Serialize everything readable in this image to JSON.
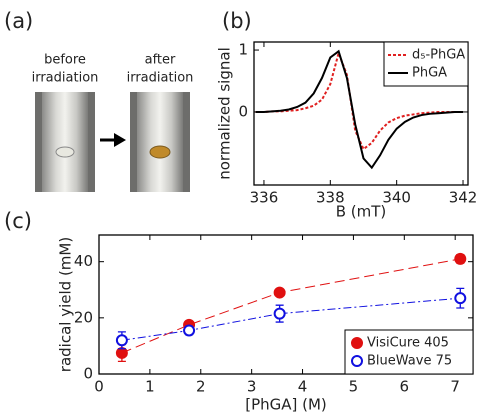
{
  "panel_a": {
    "label": "(a)",
    "before": [
      "before",
      "irradiation"
    ],
    "after": [
      "after",
      "irradiation"
    ]
  },
  "chart_data": [
    {
      "type": "line",
      "label": "(b)",
      "xlabel": "B (mT)",
      "ylabel": "normalized signal",
      "xlim": [
        335.7,
        342.15
      ],
      "ylim": [
        -1.18,
        1.13
      ],
      "xticks": [
        336,
        338,
        340,
        342
      ],
      "yticks": [
        0,
        1
      ],
      "legend": "upper right",
      "series": [
        {
          "name": "d₅-PhGA",
          "color": "#e02020",
          "style": "dotted",
          "x": [
            335.75,
            336,
            336.25,
            336.5,
            336.75,
            337,
            337.25,
            337.5,
            337.75,
            338,
            338.25,
            338.5,
            338.75,
            339,
            339.25,
            339.5,
            339.75,
            340,
            340.25,
            340.5,
            340.75,
            341,
            341.25,
            341.5,
            341.75,
            342
          ],
          "values": [
            0,
            0,
            0.01,
            0.01,
            0.02,
            0.03,
            0.06,
            0.1,
            0.2,
            0.45,
            0.95,
            0.6,
            -0.3,
            -0.6,
            -0.5,
            -0.3,
            -0.17,
            -0.1,
            -0.06,
            -0.04,
            -0.02,
            -0.01,
            0,
            0,
            0,
            0
          ]
        },
        {
          "name": "PhGA",
          "color": "#000000",
          "style": "solid",
          "x": [
            335.75,
            336,
            336.25,
            336.5,
            336.75,
            337,
            337.25,
            337.5,
            337.75,
            338,
            338.25,
            338.5,
            338.75,
            339,
            339.25,
            339.5,
            339.75,
            340,
            340.25,
            340.5,
            340.75,
            341,
            341.25,
            341.5,
            341.75,
            342
          ],
          "values": [
            0,
            0,
            0.01,
            0.02,
            0.04,
            0.08,
            0.15,
            0.3,
            0.55,
            0.88,
            0.98,
            0.55,
            -0.2,
            -0.75,
            -0.9,
            -0.7,
            -0.45,
            -0.27,
            -0.16,
            -0.09,
            -0.05,
            -0.03,
            -0.02,
            -0.01,
            0,
            0
          ]
        }
      ]
    },
    {
      "type": "scatter",
      "label": "(c)",
      "xlabel": "[PhGA] (M)",
      "ylabel": "radical yield (mM)",
      "xlim": [
        0,
        7.35
      ],
      "ylim": [
        0,
        49.5
      ],
      "xticks": [
        0,
        1,
        2,
        3,
        4,
        5,
        6,
        7
      ],
      "yticks": [
        0,
        20,
        40
      ],
      "legend": "lower right",
      "series": [
        {
          "name": "VisiCure 405",
          "color": "#e01010",
          "marker": "filled",
          "style": "dashed",
          "x": [
            0.45,
            1.77,
            3.55,
            7.1
          ],
          "values": [
            7.5,
            17.5,
            29,
            41
          ],
          "errors": [
            3,
            1,
            1,
            1.5
          ]
        },
        {
          "name": "BlueWave 75",
          "color": "#1010e0",
          "marker": "open",
          "style": "dashdot",
          "x": [
            0.45,
            1.77,
            3.55,
            7.1
          ],
          "values": [
            12,
            15.5,
            21.5,
            27
          ],
          "errors": [
            3,
            1.5,
            3,
            3.5
          ]
        }
      ]
    }
  ]
}
